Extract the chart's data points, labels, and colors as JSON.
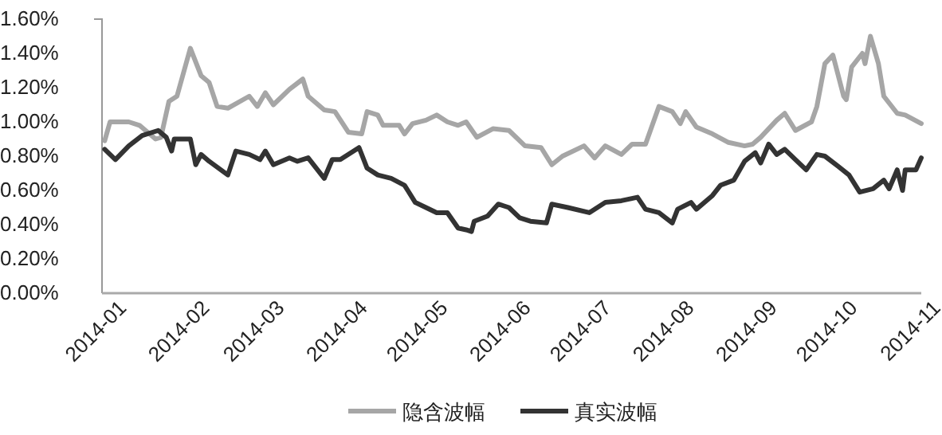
{
  "chart_data": {
    "type": "line",
    "xlim": [
      "2014-01-01",
      "2014-11-03"
    ],
    "xticks": [
      {
        "value": "2014-01-01",
        "label": "2014-01"
      },
      {
        "value": "2014-02-01",
        "label": "2014-02"
      },
      {
        "value": "2014-03-01",
        "label": "2014-03"
      },
      {
        "value": "2014-04-01",
        "label": "2014-04"
      },
      {
        "value": "2014-05-01",
        "label": "2014-05"
      },
      {
        "value": "2014-06-01",
        "label": "2014-06"
      },
      {
        "value": "2014-07-01",
        "label": "2014-07"
      },
      {
        "value": "2014-08-01",
        "label": "2014-08"
      },
      {
        "value": "2014-09-01",
        "label": "2014-09"
      },
      {
        "value": "2014-10-01",
        "label": "2014-10"
      },
      {
        "value": "2014-11-01",
        "label": "2014-11"
      }
    ],
    "ylim": [
      0,
      1.6
    ],
    "yticks": [
      {
        "value": 0,
        "label": "0.00%"
      },
      {
        "value": 0.2,
        "label": "0.20%"
      },
      {
        "value": 0.4,
        "label": "0.40%"
      },
      {
        "value": 0.6,
        "label": "0.60%"
      },
      {
        "value": 0.8,
        "label": "0.80%"
      },
      {
        "value": 1.0,
        "label": "1.00%"
      },
      {
        "value": 1.2,
        "label": "1.20%"
      },
      {
        "value": 1.4,
        "label": "1.40%"
      },
      {
        "value": 1.6,
        "label": "1.60%"
      }
    ],
    "grid": false,
    "legend": "bottom",
    "marker": "none",
    "line_style": "solid",
    "series": [
      {
        "name": "隐含波幅",
        "color": "#a6a6a6",
        "x": [
          "2014-01-02",
          "2014-01-04",
          "2014-01-11",
          "2014-01-15",
          "2014-01-21",
          "2014-01-23",
          "2014-01-26",
          "2014-01-29",
          "2014-02-03",
          "2014-02-07",
          "2014-02-10",
          "2014-02-13",
          "2014-02-17",
          "2014-02-25",
          "2014-02-28",
          "2014-03-03",
          "2014-03-06",
          "2014-03-12",
          "2014-03-17",
          "2014-03-19",
          "2014-03-25",
          "2014-03-29",
          "2014-04-03",
          "2014-04-08",
          "2014-04-10",
          "2014-04-14",
          "2014-04-16",
          "2014-04-22",
          "2014-04-24",
          "2014-04-27",
          "2014-05-02",
          "2014-05-06",
          "2014-05-10",
          "2014-05-14",
          "2014-05-17",
          "2014-05-21",
          "2014-05-27",
          "2014-06-02",
          "2014-06-08",
          "2014-06-14",
          "2014-06-18",
          "2014-06-22",
          "2014-06-30",
          "2014-07-04",
          "2014-07-08",
          "2014-07-14",
          "2014-07-18",
          "2014-07-23",
          "2014-07-28",
          "2014-08-02",
          "2014-08-05",
          "2014-08-07",
          "2014-08-11",
          "2014-08-17",
          "2014-08-23",
          "2014-08-29",
          "2014-09-01",
          "2014-09-04",
          "2014-09-10",
          "2014-09-13",
          "2014-09-17",
          "2014-09-23",
          "2014-09-25",
          "2014-09-28",
          "2014-10-01",
          "2014-10-05",
          "2014-10-06",
          "2014-10-08",
          "2014-10-12",
          "2014-10-13",
          "2014-10-15",
          "2014-10-18",
          "2014-10-20",
          "2014-10-25",
          "2014-10-28",
          "2014-11-03"
        ],
        "values": [
          0.89,
          1.0,
          1.0,
          0.98,
          0.9,
          0.91,
          1.12,
          1.15,
          1.43,
          1.27,
          1.23,
          1.09,
          1.08,
          1.15,
          1.09,
          1.17,
          1.1,
          1.19,
          1.25,
          1.15,
          1.07,
          1.06,
          0.94,
          0.93,
          1.06,
          1.04,
          0.98,
          0.98,
          0.93,
          0.99,
          1.01,
          1.04,
          1.0,
          0.98,
          1.0,
          0.91,
          0.96,
          0.95,
          0.86,
          0.85,
          0.75,
          0.8,
          0.86,
          0.79,
          0.86,
          0.81,
          0.87,
          0.87,
          1.09,
          1.06,
          0.99,
          1.06,
          0.97,
          0.93,
          0.88,
          0.86,
          0.87,
          0.91,
          1.01,
          1.05,
          0.95,
          1.0,
          1.09,
          1.34,
          1.39,
          1.15,
          1.13,
          1.32,
          1.4,
          1.34,
          1.5,
          1.34,
          1.15,
          1.05,
          1.04,
          0.99
        ]
      },
      {
        "name": "真实波幅",
        "color": "#333333",
        "x": [
          "2014-01-02",
          "2014-01-06",
          "2014-01-11",
          "2014-01-16",
          "2014-01-22",
          "2014-01-25",
          "2014-01-27",
          "2014-01-28",
          "2014-02-03",
          "2014-02-05",
          "2014-02-07",
          "2014-02-10",
          "2014-02-17",
          "2014-02-20",
          "2014-02-25",
          "2014-03-01",
          "2014-03-03",
          "2014-03-06",
          "2014-03-12",
          "2014-03-15",
          "2014-03-19",
          "2014-03-25",
          "2014-03-28",
          "2014-03-31",
          "2014-04-07",
          "2014-04-10",
          "2014-04-14",
          "2014-04-19",
          "2014-04-24",
          "2014-04-28",
          "2014-05-02",
          "2014-05-06",
          "2014-05-10",
          "2014-05-14",
          "2014-05-17",
          "2014-05-19",
          "2014-05-20",
          "2014-05-25",
          "2014-05-29",
          "2014-06-02",
          "2014-06-06",
          "2014-06-10",
          "2014-06-16",
          "2014-06-18",
          "2014-06-24",
          "2014-07-02",
          "2014-07-08",
          "2014-07-14",
          "2014-07-20",
          "2014-07-23",
          "2014-07-28",
          "2014-08-02",
          "2014-08-04",
          "2014-08-09",
          "2014-08-11",
          "2014-08-17",
          "2014-08-20",
          "2014-08-25",
          "2014-08-29",
          "2014-09-02",
          "2014-09-04",
          "2014-09-07",
          "2014-09-10",
          "2014-09-13",
          "2014-09-17",
          "2014-09-21",
          "2014-09-25",
          "2014-09-28",
          "2014-10-03",
          "2014-10-07",
          "2014-10-11",
          "2014-10-16",
          "2014-10-20",
          "2014-10-22",
          "2014-10-25",
          "2014-10-27",
          "2014-10-28",
          "2014-11-01",
          "2014-11-03"
        ],
        "values": [
          0.84,
          0.78,
          0.86,
          0.92,
          0.95,
          0.91,
          0.83,
          0.9,
          0.9,
          0.75,
          0.81,
          0.77,
          0.69,
          0.83,
          0.81,
          0.78,
          0.83,
          0.75,
          0.79,
          0.77,
          0.79,
          0.67,
          0.78,
          0.78,
          0.85,
          0.73,
          0.69,
          0.67,
          0.63,
          0.53,
          0.5,
          0.47,
          0.47,
          0.38,
          0.37,
          0.36,
          0.42,
          0.45,
          0.52,
          0.5,
          0.44,
          0.42,
          0.41,
          0.52,
          0.5,
          0.47,
          0.53,
          0.54,
          0.56,
          0.49,
          0.47,
          0.41,
          0.49,
          0.53,
          0.49,
          0.57,
          0.63,
          0.66,
          0.77,
          0.82,
          0.76,
          0.87,
          0.81,
          0.84,
          0.78,
          0.72,
          0.81,
          0.8,
          0.74,
          0.69,
          0.59,
          0.61,
          0.66,
          0.61,
          0.72,
          0.6,
          0.72,
          0.72,
          0.79
        ]
      }
    ]
  }
}
